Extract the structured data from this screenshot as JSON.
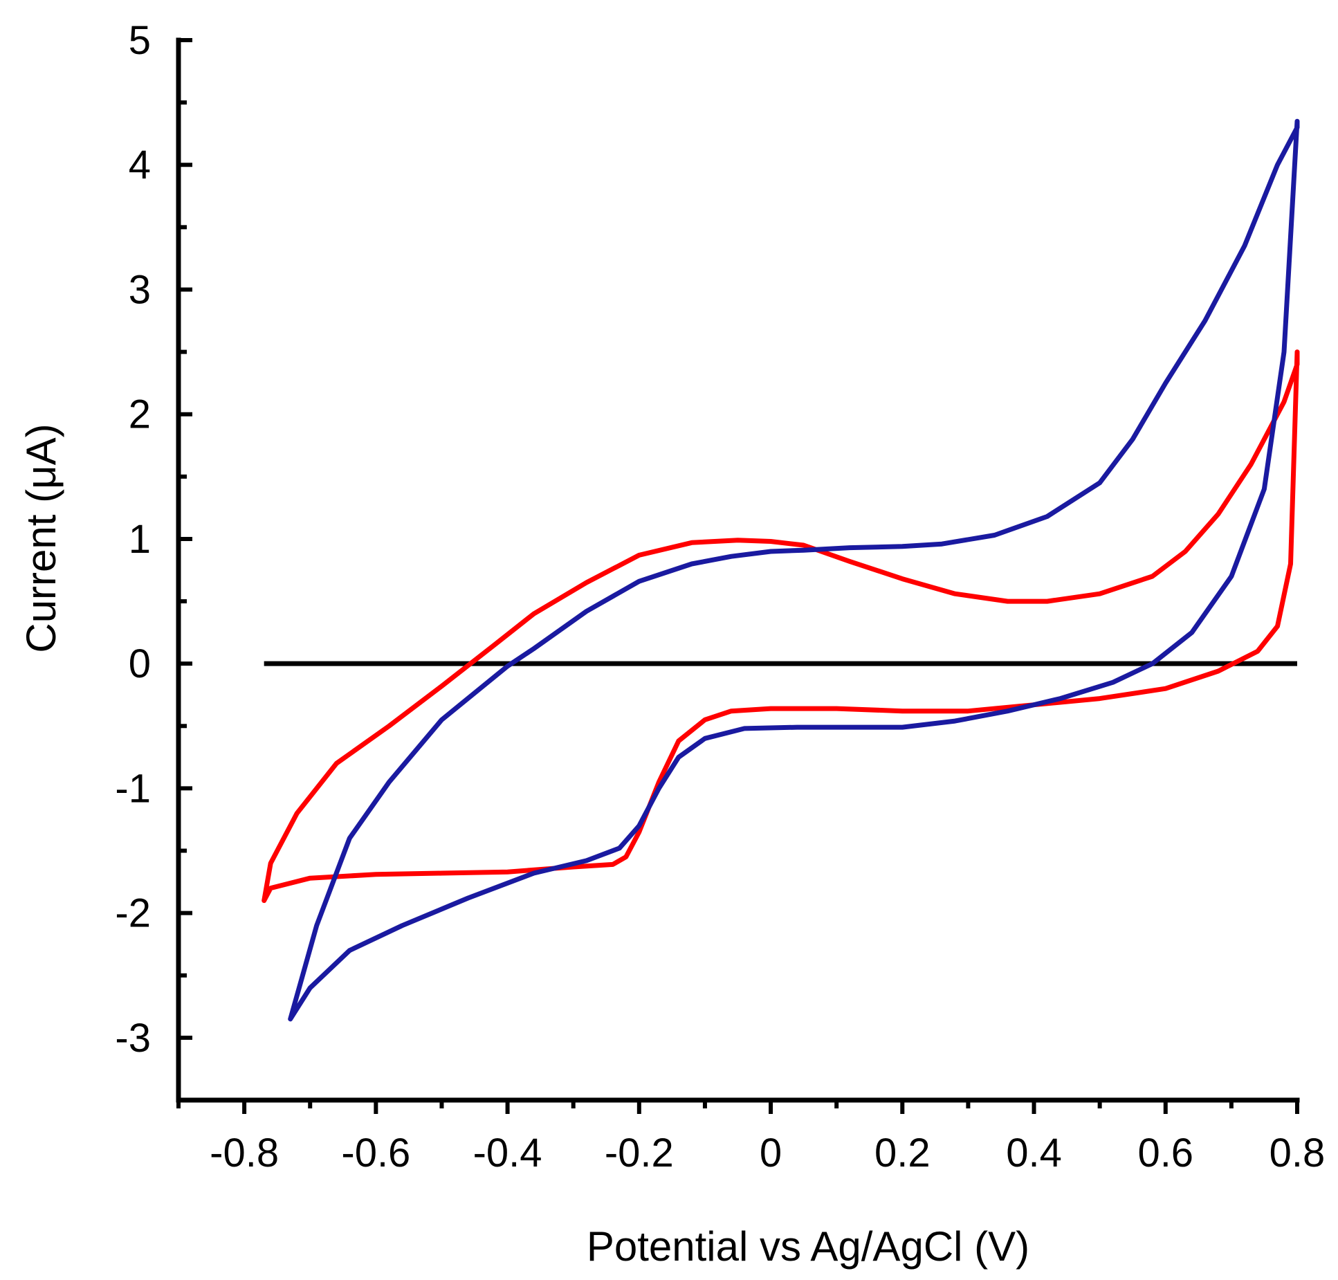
{
  "chart_data": {
    "type": "line",
    "title": "",
    "xlabel": "Potential vs Ag/AgCl  (V)",
    "ylabel": "Current (μA)",
    "xlim": [
      -0.9,
      0.8
    ],
    "ylim": [
      -3.5,
      5
    ],
    "xticks": [
      -0.8,
      -0.6,
      -0.4,
      -0.2,
      0,
      0.2,
      0.4,
      0.6,
      0.8
    ],
    "xtick_labels": [
      "-0.8",
      "-0.6",
      "-0.4",
      "-0.2",
      "0",
      "0.2",
      "0.4",
      "0.6",
      "0.8"
    ],
    "yticks": [
      -3,
      -2,
      -1,
      0,
      1,
      2,
      3,
      4,
      5
    ],
    "ytick_labels": [
      "-3",
      "-2",
      "-1",
      "0",
      "1",
      "2",
      "3",
      "4",
      "5"
    ],
    "grid": false,
    "colors": {
      "red": "#ff0000",
      "blue": "#1a1aa0",
      "zero_line": "#000000"
    },
    "zero_line": {
      "x": [
        -0.77,
        0.8
      ],
      "y": 0
    },
    "series": [
      {
        "color": "#ff0000",
        "x": [
          0.8,
          0.8,
          0.78,
          0.73,
          0.68,
          0.63,
          0.58,
          0.5,
          0.42,
          0.36,
          0.28,
          0.2,
          0.12,
          0.05,
          0.0,
          -0.05,
          -0.12,
          -0.2,
          -0.28,
          -0.36,
          -0.42,
          -0.5,
          -0.58,
          -0.66,
          -0.72,
          -0.76,
          -0.77,
          -0.76,
          -0.7,
          -0.6,
          -0.5,
          -0.4,
          -0.3,
          -0.24,
          -0.22,
          -0.2,
          -0.17,
          -0.14,
          -0.1,
          -0.06,
          0.0,
          0.1,
          0.2,
          0.3,
          0.4,
          0.5,
          0.6,
          0.68,
          0.74,
          0.77,
          0.79,
          0.8
        ],
        "y": [
          2.5,
          2.4,
          2.1,
          1.6,
          1.2,
          0.9,
          0.7,
          0.56,
          0.5,
          0.5,
          0.56,
          0.68,
          0.82,
          0.95,
          0.98,
          0.99,
          0.97,
          0.87,
          0.65,
          0.4,
          0.15,
          -0.18,
          -0.5,
          -0.8,
          -1.2,
          -1.6,
          -1.9,
          -1.8,
          -1.72,
          -1.69,
          -1.68,
          -1.67,
          -1.63,
          -1.61,
          -1.55,
          -1.35,
          -0.95,
          -0.62,
          -0.45,
          -0.38,
          -0.36,
          -0.36,
          -0.38,
          -0.38,
          -0.33,
          -0.28,
          -0.2,
          -0.06,
          0.1,
          0.3,
          0.8,
          2.5
        ]
      },
      {
        "color": "#1a1aa0",
        "x": [
          0.8,
          0.8,
          0.77,
          0.72,
          0.66,
          0.6,
          0.55,
          0.5,
          0.42,
          0.34,
          0.26,
          0.2,
          0.12,
          0.05,
          0.0,
          -0.06,
          -0.12,
          -0.2,
          -0.28,
          -0.36,
          -0.4,
          -0.5,
          -0.58,
          -0.64,
          -0.69,
          -0.73,
          -0.7,
          -0.64,
          -0.56,
          -0.46,
          -0.36,
          -0.28,
          -0.23,
          -0.2,
          -0.17,
          -0.14,
          -0.1,
          -0.04,
          0.04,
          0.12,
          0.2,
          0.28,
          0.36,
          0.44,
          0.52,
          0.58,
          0.64,
          0.7,
          0.75,
          0.78,
          0.8
        ],
        "y": [
          4.35,
          4.3,
          4.0,
          3.35,
          2.75,
          2.25,
          1.8,
          1.45,
          1.18,
          1.03,
          0.96,
          0.94,
          0.93,
          0.91,
          0.9,
          0.86,
          0.8,
          0.66,
          0.42,
          0.12,
          -0.02,
          -0.45,
          -0.95,
          -1.4,
          -2.1,
          -2.85,
          -2.6,
          -2.3,
          -2.1,
          -1.88,
          -1.68,
          -1.58,
          -1.48,
          -1.3,
          -1.0,
          -0.75,
          -0.6,
          -0.52,
          -0.51,
          -0.51,
          -0.51,
          -0.46,
          -0.38,
          -0.28,
          -0.15,
          0.0,
          0.25,
          0.7,
          1.4,
          2.5,
          4.35
        ]
      }
    ]
  }
}
